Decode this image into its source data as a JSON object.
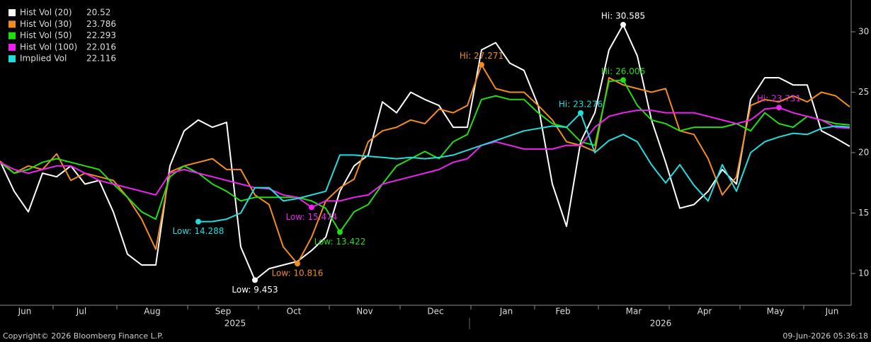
{
  "chart_data": {
    "type": "line",
    "categories": [
      null,
      null,
      "Jun",
      null,
      null,
      null,
      "Jul",
      null,
      null,
      null,
      null,
      "Aug",
      null,
      null,
      null,
      null,
      "Sep",
      null,
      null,
      null,
      null,
      "Oct",
      null,
      null,
      null,
      null,
      "Nov",
      null,
      null,
      null,
      null,
      "Dec",
      null,
      null,
      null,
      null,
      "Jan",
      null,
      null,
      null,
      "Feb",
      null,
      null,
      null,
      null,
      "Mar",
      null,
      null,
      null,
      null,
      "Apr",
      null,
      null,
      null,
      null,
      "May",
      null,
      null,
      null,
      "Jun",
      null
    ],
    "year_labels": [
      "2025",
      "2026"
    ],
    "ylim": [
      7.37,
      32.63
    ],
    "yticks": [
      10,
      15,
      20,
      25,
      30
    ],
    "grid": false,
    "series": [
      {
        "name": "Hist Vol (20)",
        "color": "#ffffff",
        "hi_label": "Hi: 30.585",
        "lo_label": "Low: 9.453",
        "values": [
          19.3,
          16.8,
          15.1,
          18.3,
          18.0,
          18.9,
          17.4,
          17.7,
          15.1,
          11.6,
          10.7,
          10.7,
          18.9,
          21.8,
          22.7,
          22.1,
          22.5,
          12.2,
          9.453,
          10.4,
          10.7,
          11.0,
          11.9,
          13.0,
          16.8,
          18.9,
          19.8,
          24.2,
          23.3,
          25.0,
          24.4,
          23.9,
          22.1,
          22.1,
          28.5,
          29.1,
          27.4,
          26.8,
          23.9,
          17.4,
          13.9,
          20.9,
          23.3,
          28.5,
          30.585,
          28.0,
          22.7,
          19.2,
          15.4,
          15.7,
          16.8,
          18.6,
          17.4,
          24.4,
          26.2,
          26.2,
          25.6,
          25.6,
          21.8,
          21.2,
          20.52
        ]
      },
      {
        "name": "Hist Vol (30)",
        "color": "#f28c1f",
        "hi_label": "Hi: 27.271",
        "lo_label": "Low: 10.816",
        "values": [
          19.3,
          18.3,
          18.9,
          18.6,
          19.9,
          17.7,
          18.3,
          18.0,
          17.7,
          16.3,
          14.5,
          12.0,
          18.4,
          18.9,
          19.2,
          19.5,
          18.6,
          18.6,
          16.5,
          15.7,
          12.2,
          10.816,
          13.0,
          16.0,
          17.1,
          17.8,
          20.9,
          21.8,
          22.1,
          22.7,
          22.4,
          23.6,
          23.3,
          23.9,
          27.271,
          25.3,
          25.0,
          25.0,
          23.9,
          22.7,
          20.9,
          20.6,
          20.1,
          26.2,
          25.6,
          25.3,
          25.0,
          25.3,
          21.8,
          21.5,
          19.5,
          16.5,
          18.0,
          23.9,
          24.4,
          24.2,
          24.7,
          24.2,
          25.0,
          24.7,
          23.786
        ]
      },
      {
        "name": "Hist Vol (50)",
        "color": "#22dd11",
        "hi_label": "Hi: 26.006",
        "lo_label": "Low: 13.422",
        "values": [
          19.2,
          18.3,
          18.6,
          19.2,
          19.5,
          19.2,
          18.9,
          18.6,
          17.4,
          16.3,
          15.1,
          14.5,
          18.0,
          18.9,
          18.3,
          17.4,
          16.8,
          16.0,
          16.3,
          16.3,
          16.3,
          16.3,
          16.0,
          15.4,
          13.422,
          15.1,
          15.7,
          17.4,
          18.9,
          19.5,
          20.1,
          19.5,
          20.9,
          21.5,
          24.4,
          24.7,
          24.4,
          24.4,
          23.3,
          22.4,
          22.1,
          20.9,
          20.6,
          25.9,
          26.006,
          23.9,
          22.7,
          22.4,
          21.8,
          22.1,
          22.1,
          22.1,
          22.4,
          21.8,
          23.3,
          22.4,
          22.1,
          23.0,
          22.7,
          22.4,
          22.293
        ]
      },
      {
        "name": "Hist Vol (100)",
        "color": "#ee22ee",
        "hi_label": "Hi: 23.731",
        "lo_label": "Low: 15.474",
        "values": [
          19.2,
          18.6,
          18.3,
          18.6,
          18.9,
          18.9,
          18.3,
          17.7,
          17.4,
          17.1,
          16.8,
          16.5,
          18.3,
          18.6,
          18.3,
          18.0,
          17.7,
          17.4,
          17.1,
          17.0,
          16.5,
          16.3,
          15.474,
          16.0,
          16.0,
          16.3,
          16.5,
          17.4,
          17.7,
          18.0,
          18.3,
          18.6,
          19.2,
          19.5,
          20.6,
          20.9,
          20.6,
          20.3,
          20.3,
          20.3,
          20.6,
          20.6,
          22.1,
          23.0,
          23.3,
          23.5,
          23.5,
          23.3,
          23.3,
          23.3,
          23.0,
          22.7,
          22.4,
          22.7,
          23.6,
          23.731,
          23.3,
          23.0,
          22.7,
          22.1,
          22.016
        ]
      },
      {
        "name": "Implied Vol",
        "color": "#22dddd",
        "hi_label": "Hi: 23.276",
        "lo_label": "Low: 14.288",
        "values": [
          null,
          null,
          null,
          null,
          null,
          null,
          null,
          null,
          null,
          null,
          null,
          null,
          null,
          null,
          14.288,
          14.3,
          14.5,
          15.0,
          17.1,
          17.1,
          16.0,
          16.2,
          16.5,
          16.8,
          19.8,
          19.8,
          19.7,
          19.6,
          19.5,
          19.6,
          19.5,
          19.6,
          19.8,
          20.2,
          20.6,
          21.0,
          21.4,
          21.8,
          22.0,
          22.2,
          22.1,
          23.276,
          20.0,
          21.0,
          21.5,
          20.9,
          19.0,
          17.5,
          19.0,
          17.3,
          16.0,
          19.0,
          16.8,
          20.0,
          20.9,
          21.3,
          21.6,
          21.5,
          22.0,
          22.2,
          22.116
        ]
      }
    ]
  },
  "footer": {
    "copyright": "Copyright© 2026 Bloomberg Finance L.P.",
    "timestamp": "09-Jun-2026 05:36:18"
  }
}
